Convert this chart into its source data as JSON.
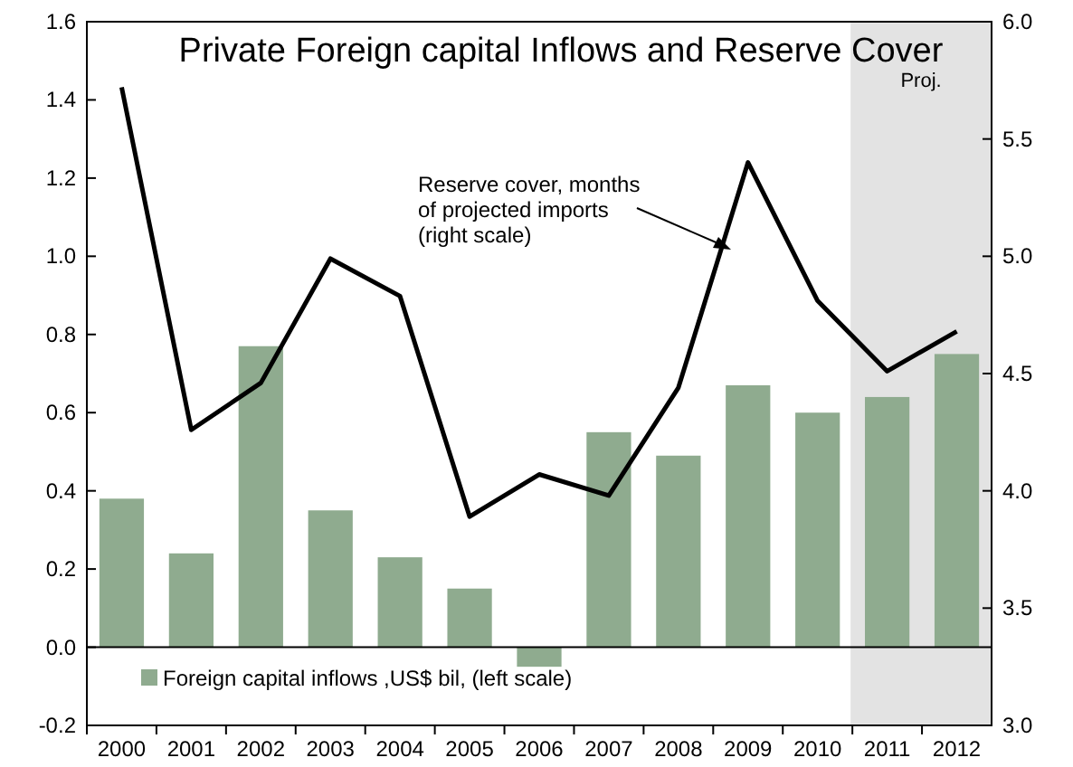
{
  "chart_data": {
    "type": "bar",
    "title": "Private Foreign capital Inflows and Reserve Cover",
    "categories": [
      "2000",
      "2001",
      "2002",
      "2003",
      "2004",
      "2005",
      "2006",
      "2007",
      "2008",
      "2009",
      "2010",
      "2011",
      "2012"
    ],
    "series": [
      {
        "name": "Foreign capital inflows ,US$ bil, (left scale)",
        "color": "#8fab8f",
        "values": [
          0.38,
          0.24,
          0.77,
          0.35,
          0.23,
          0.15,
          -0.05,
          0.55,
          0.49,
          0.67,
          0.6,
          0.64,
          0.75
        ]
      },
      {
        "type": "line",
        "axis": "y2",
        "color": "#000000",
        "values": [
          5.72,
          4.26,
          4.46,
          4.99,
          4.83,
          3.89,
          4.07,
          3.98,
          4.44,
          5.4,
          4.81,
          4.51,
          4.68
        ]
      }
    ],
    "ylim": [
      -0.2,
      1.6
    ],
    "yticks": [
      {
        "value": -0.2,
        "label": "-0.2"
      },
      {
        "value": 0,
        "label": "0.0"
      },
      {
        "value": 0.2,
        "label": "0.2"
      },
      {
        "value": 0.4,
        "label": "0.4"
      },
      {
        "value": 0.6,
        "label": "0.6"
      },
      {
        "value": 0.8,
        "label": "0.8"
      },
      {
        "value": 1,
        "label": "1.0"
      },
      {
        "value": 1.2,
        "label": "1.2"
      },
      {
        "value": 1.4,
        "label": "1.4"
      },
      {
        "value": 1.6,
        "label": "1.6"
      }
    ],
    "y2lim": [
      3,
      6
    ],
    "y2ticks": [
      {
        "value": 3,
        "label": "3.0"
      },
      {
        "value": 3.5,
        "label": "3.5"
      },
      {
        "value": 4,
        "label": "4.0"
      },
      {
        "value": 4.5,
        "label": "4.5"
      },
      {
        "value": 5,
        "label": "5.0"
      },
      {
        "value": 5.5,
        "label": "5.5"
      },
      {
        "value": 6,
        "label": "6.0"
      }
    ],
    "bands": [
      {
        "axis": "x",
        "from": "2011",
        "to": "2012",
        "label": "Proj.",
        "color": "#e3e3e3"
      }
    ],
    "annotations": [
      "Reserve cover, months\nof projected imports\n(right scale)"
    ],
    "legend": "bottom left"
  }
}
